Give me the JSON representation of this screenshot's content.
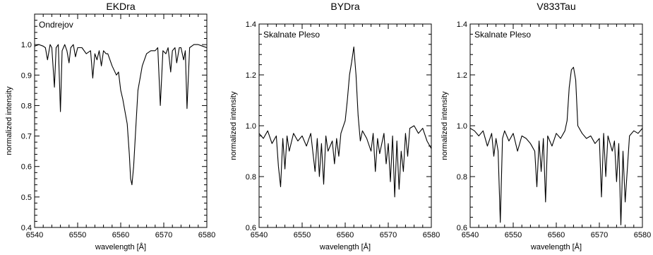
{
  "chart_data": [
    {
      "type": "line",
      "title": "EKDra",
      "annotation": "Ondrejov",
      "xlabel": "wavelength [Å]",
      "ylabel": "normalized intensity",
      "xlim": [
        6540,
        6580
      ],
      "ylim": [
        0.4,
        1.1
      ],
      "xticks": [
        6540,
        6550,
        6560,
        6570,
        6580
      ],
      "yticks": [
        0.4,
        0.5,
        0.6,
        0.7,
        0.8,
        0.9,
        1.0
      ],
      "ytick_labels": [
        "0.4",
        "0.5",
        "0.6",
        "0.7",
        "0.8",
        "0.9",
        "1.0"
      ],
      "grid": false,
      "series": [
        {
          "x": [
            6540,
            6541,
            6542,
            6542.5,
            6543,
            6543.6,
            6544,
            6544.6,
            6545,
            6545.5,
            6546,
            6546.4,
            6547,
            6547.5,
            6548,
            6548.4,
            6549,
            6549.5,
            6550,
            6551,
            6552,
            6553,
            6553.5,
            6554,
            6554.5,
            6555,
            6555.5,
            6556,
            6556.6,
            6557,
            6558,
            6559,
            6559.5,
            6560,
            6560.5,
            6561,
            6561.5,
            6562,
            6562.3,
            6562.6,
            6563,
            6563.4,
            6564,
            6565,
            6566,
            6567,
            6568,
            6568.6,
            6569.2,
            6569.8,
            6570.5,
            6571,
            6571.6,
            6572,
            6572.6,
            6573,
            6573.6,
            6574,
            6574.6,
            6575,
            6575.4,
            6576,
            6577,
            6578,
            6579,
            6580
          ],
          "y": [
            0.995,
            1.0,
            0.995,
            0.99,
            0.95,
            1.0,
            0.99,
            0.86,
            0.99,
            1.0,
            0.78,
            0.98,
            1.0,
            0.98,
            0.94,
            0.99,
            1.0,
            0.96,
            0.99,
            0.99,
            0.97,
            0.98,
            0.89,
            0.97,
            0.95,
            0.98,
            0.93,
            0.98,
            0.97,
            0.97,
            0.93,
            0.9,
            0.91,
            0.85,
            0.82,
            0.78,
            0.74,
            0.64,
            0.56,
            0.54,
            0.6,
            0.7,
            0.85,
            0.93,
            0.97,
            0.98,
            0.98,
            0.99,
            0.8,
            0.98,
            0.97,
            0.99,
            0.91,
            0.98,
            0.99,
            0.94,
            0.99,
            0.99,
            0.95,
            0.98,
            0.79,
            0.99,
            1.0,
            1.0,
            0.995,
            0.99
          ]
        }
      ]
    },
    {
      "type": "line",
      "title": "BYDra",
      "annotation": "Skalnate Pleso",
      "xlabel": "wavelength [Å]",
      "ylabel": "normalized intensity",
      "xlim": [
        6540,
        6580
      ],
      "ylim": [
        0.6,
        1.4
      ],
      "xticks": [
        6540,
        6550,
        6560,
        6570,
        6580
      ],
      "yticks": [
        0.6,
        0.8,
        1.0,
        1.2,
        1.4
      ],
      "ytick_labels": [
        "0.6",
        "0.8",
        "1.0",
        "1.2",
        "1.4"
      ],
      "grid": false,
      "series": [
        {
          "x": [
            6540,
            6541,
            6542,
            6543,
            6544,
            6544.5,
            6545,
            6545.5,
            6546,
            6546.5,
            6547,
            6548,
            6549,
            6550,
            6551,
            6552,
            6553,
            6553.5,
            6554,
            6554.5,
            6555,
            6555.5,
            6556,
            6557,
            6557.5,
            6558,
            6558.5,
            6559,
            6560,
            6560.5,
            6561,
            6561.5,
            6562,
            6562.5,
            6563,
            6563.5,
            6564,
            6565,
            6566,
            6566.5,
            6567,
            6567.5,
            6568,
            6569,
            6569.5,
            6570,
            6570.5,
            6571,
            6571.5,
            6572,
            6572.5,
            6573,
            6573.5,
            6574,
            6574.5,
            6575,
            6576,
            6577,
            6578,
            6579,
            6580
          ],
          "y": [
            0.97,
            0.95,
            0.98,
            0.93,
            0.96,
            0.84,
            0.76,
            0.95,
            0.83,
            0.96,
            0.9,
            0.97,
            0.94,
            0.96,
            0.92,
            0.97,
            0.82,
            0.95,
            0.8,
            0.93,
            0.77,
            0.96,
            0.9,
            0.94,
            0.85,
            0.95,
            0.88,
            0.97,
            1.02,
            1.1,
            1.2,
            1.25,
            1.31,
            1.2,
            1.04,
            0.94,
            0.98,
            0.95,
            0.9,
            0.97,
            0.82,
            0.95,
            0.89,
            0.97,
            0.85,
            0.93,
            0.78,
            0.96,
            0.72,
            0.94,
            0.75,
            0.9,
            0.82,
            0.97,
            0.88,
            0.99,
            1.0,
            0.97,
            0.99,
            0.94,
            0.91
          ]
        }
      ]
    },
    {
      "type": "line",
      "title": "V833Tau",
      "annotation": "Skalnate Pleso",
      "xlabel": "wavelength [Å]",
      "ylabel": "normalized intensity",
      "xlim": [
        6540,
        6580
      ],
      "ylim": [
        0.6,
        1.4
      ],
      "xticks": [
        6540,
        6550,
        6560,
        6570,
        6580
      ],
      "yticks": [
        0.6,
        0.8,
        1.0,
        1.2,
        1.4
      ],
      "ytick_labels": [
        "0.6",
        "0.8",
        "1.0",
        "1.2",
        "1.4"
      ],
      "grid": false,
      "series": [
        {
          "x": [
            6540,
            6541,
            6542,
            6543,
            6544,
            6545,
            6545.5,
            6546,
            6546.5,
            6547,
            6547.5,
            6548,
            6549,
            6550,
            6551,
            6552,
            6553,
            6554,
            6555,
            6555.5,
            6556,
            6556.5,
            6557,
            6557.5,
            6558,
            6559,
            6560,
            6561,
            6562,
            6562.5,
            6563,
            6563.5,
            6564,
            6564.5,
            6565,
            6566,
            6567,
            6568,
            6569,
            6570,
            6570.5,
            6571,
            6571.5,
            6572,
            6573,
            6573.5,
            6574,
            6574.5,
            6575,
            6575.5,
            6576,
            6577,
            6578,
            6579,
            6580
          ],
          "y": [
            0.99,
            0.98,
            0.96,
            0.98,
            0.92,
            0.97,
            0.88,
            0.95,
            0.9,
            0.62,
            0.95,
            0.98,
            0.94,
            0.97,
            0.9,
            0.96,
            0.95,
            0.93,
            0.9,
            0.76,
            0.94,
            0.82,
            0.95,
            0.7,
            0.96,
            0.92,
            0.97,
            0.95,
            0.98,
            1.02,
            1.15,
            1.22,
            1.23,
            1.18,
            1.0,
            0.97,
            0.95,
            0.96,
            0.93,
            0.95,
            0.72,
            0.97,
            0.8,
            0.96,
            0.9,
            0.94,
            0.78,
            0.93,
            0.61,
            0.9,
            0.7,
            0.96,
            0.98,
            0.97,
            0.99
          ]
        }
      ]
    }
  ]
}
